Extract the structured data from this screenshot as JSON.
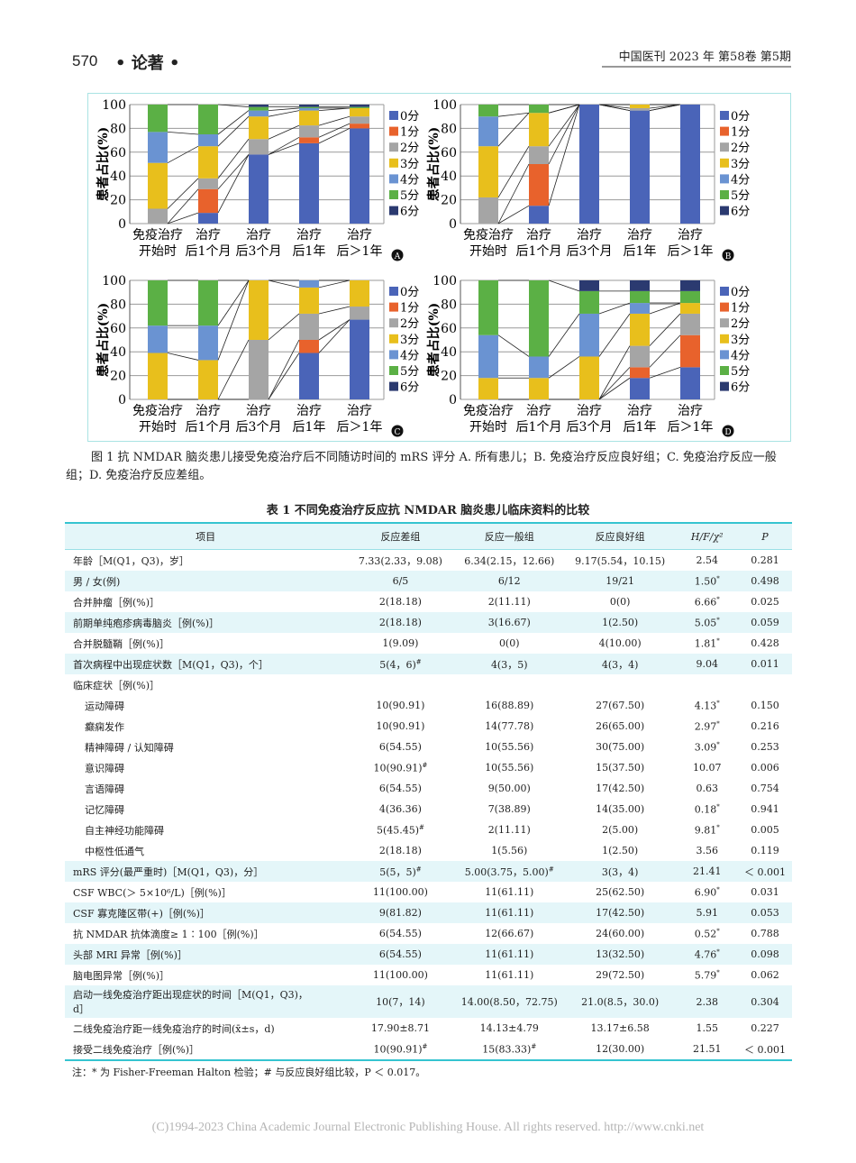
{
  "header": {
    "page_number": "570",
    "section": "• 论著 •",
    "journal": "中国医刊 2023 年  第58卷  第5期"
  },
  "figure": {
    "caption": "图 1   抗 NMDAR 脑炎患儿接受免疫治疗后不同随访时间的 mRS 评分   A. 所有患儿；B. 免疫治疗反应良好组；C. 免疫治疗反应一般组；D. 免疫治疗反应差组。"
  },
  "chart_data": [
    {
      "panel": "A",
      "type": "bar",
      "stacked": true,
      "ylabel": "患者占比(%)",
      "ylim": [
        0,
        100
      ],
      "yticks": [
        "0",
        "20",
        "40",
        "60",
        "80",
        "100"
      ],
      "grid": true,
      "legend": "right",
      "categories": [
        [
          "免疫治疗",
          "开始时"
        ],
        [
          "治疗",
          "后1个月"
        ],
        [
          "治疗",
          "后3个月"
        ],
        [
          "治疗",
          "后1年"
        ],
        [
          "治疗",
          "后＞1年"
        ]
      ],
      "series": [
        {
          "name": "0分",
          "values": [
            0,
            9,
            58,
            67.5,
            80
          ]
        },
        {
          "name": "1分",
          "values": [
            0,
            20,
            0,
            5,
            4
          ]
        },
        {
          "name": "2分",
          "values": [
            12.5,
            9,
            13,
            10,
            6
          ]
        },
        {
          "name": "3分",
          "values": [
            38.5,
            27,
            19,
            12.5,
            7
          ]
        },
        {
          "name": "4分",
          "values": [
            26,
            10,
            5,
            2,
            0
          ]
        },
        {
          "name": "5分",
          "values": [
            23,
            25,
            3,
            1,
            1
          ]
        },
        {
          "name": "6分",
          "values": [
            0,
            0,
            2,
            2,
            2
          ]
        }
      ]
    },
    {
      "panel": "B",
      "type": "bar",
      "stacked": true,
      "ylabel": "患者占比(%)",
      "ylim": [
        0,
        100
      ],
      "yticks": [
        "0",
        "20",
        "40",
        "60",
        "80",
        "100"
      ],
      "grid": true,
      "legend": "right",
      "categories": [
        [
          "免疫治疗",
          "开始时"
        ],
        [
          "治疗",
          "后1个月"
        ],
        [
          "治疗",
          "后3个月"
        ],
        [
          "治疗",
          "后1年"
        ],
        [
          "治疗",
          "后＞1年"
        ]
      ],
      "series": [
        {
          "name": "0分",
          "values": [
            0,
            15,
            100,
            95,
            100
          ]
        },
        {
          "name": "1分",
          "values": [
            0,
            35,
            0,
            0,
            0
          ]
        },
        {
          "name": "2分",
          "values": [
            22,
            15,
            0,
            2,
            0
          ]
        },
        {
          "name": "3分",
          "values": [
            43,
            28,
            0,
            3,
            0
          ]
        },
        {
          "name": "4分",
          "values": [
            25,
            0,
            0,
            0,
            0
          ]
        },
        {
          "name": "5分",
          "values": [
            10,
            7,
            0,
            0,
            0
          ]
        },
        {
          "name": "6分",
          "values": [
            0,
            0,
            0,
            0,
            0
          ]
        }
      ]
    },
    {
      "panel": "C",
      "type": "bar",
      "stacked": true,
      "ylabel": "患者占比(%)",
      "ylim": [
        0,
        100
      ],
      "yticks": [
        "0",
        "20",
        "40",
        "60",
        "80",
        "100"
      ],
      "grid": true,
      "legend": "right",
      "categories": [
        [
          "免疫治疗",
          "开始时"
        ],
        [
          "治疗",
          "后1个月"
        ],
        [
          "治疗",
          "后3个月"
        ],
        [
          "治疗",
          "后1年"
        ],
        [
          "治疗",
          "后＞1年"
        ]
      ],
      "series": [
        {
          "name": "0分",
          "values": [
            0,
            0,
            0,
            39,
            67
          ]
        },
        {
          "name": "1分",
          "values": [
            0,
            0,
            0,
            11,
            0
          ]
        },
        {
          "name": "2分",
          "values": [
            0,
            0,
            50,
            22,
            11
          ]
        },
        {
          "name": "3分",
          "values": [
            39,
            33,
            50,
            22,
            22
          ]
        },
        {
          "name": "4分",
          "values": [
            23,
            29,
            0,
            6,
            0
          ]
        },
        {
          "name": "5分",
          "values": [
            38,
            38,
            0,
            0,
            0
          ]
        },
        {
          "name": "6分",
          "values": [
            0,
            0,
            0,
            0,
            0
          ]
        }
      ]
    },
    {
      "panel": "D",
      "type": "bar",
      "stacked": true,
      "ylabel": "患者占比(%)",
      "ylim": [
        0,
        100
      ],
      "yticks": [
        "0",
        "20",
        "40",
        "60",
        "80",
        "100"
      ],
      "grid": true,
      "legend": "right",
      "categories": [
        [
          "免疫治疗",
          "开始时"
        ],
        [
          "治疗",
          "后1个月"
        ],
        [
          "治疗",
          "后3个月"
        ],
        [
          "治疗",
          "后1年"
        ],
        [
          "治疗",
          "后＞1年"
        ]
      ],
      "series": [
        {
          "name": "0分",
          "values": [
            0,
            0,
            0,
            18,
            27
          ]
        },
        {
          "name": "1分",
          "values": [
            0,
            0,
            0,
            9,
            27
          ]
        },
        {
          "name": "2分",
          "values": [
            0,
            0,
            0,
            18,
            18
          ]
        },
        {
          "name": "3分",
          "values": [
            18,
            18,
            36,
            27,
            9
          ]
        },
        {
          "name": "4分",
          "values": [
            36,
            18,
            36,
            9,
            0
          ]
        },
        {
          "name": "5分",
          "values": [
            46,
            64,
            19,
            10,
            10
          ]
        },
        {
          "name": "6分",
          "values": [
            0,
            0,
            9,
            9,
            9
          ]
        }
      ]
    }
  ],
  "colors": [
    "#4a64b8",
    "#e8622c",
    "#a5a5a5",
    "#e8bf1c",
    "#6a93d2",
    "#5bb045",
    "#2b3a70"
  ],
  "table": {
    "title": "表 1   不同免疫治疗反应抗 NMDAR 脑炎患儿临床资料的比较",
    "headers": [
      "项目",
      "反应差组",
      "反应一般组",
      "反应良好组",
      "H/F/χ²",
      "P"
    ],
    "rows": [
      {
        "item": "年龄［M(Q1，Q3)，岁］",
        "c": [
          "7.33(2.33，9.08)",
          "6.34(2.15，12.66)",
          "9.17(5.54，10.15)"
        ],
        "s": "2.54",
        "p": "0.281"
      },
      {
        "item": "男 / 女(例)",
        "c": [
          "6/5",
          "6/12",
          "19/21"
        ],
        "s": "1.50",
        "ss": "*",
        "p": "0.498",
        "shade": true
      },
      {
        "item": "合并肿瘤［例(%)］",
        "c": [
          "2(18.18)",
          "2(11.11)",
          "0(0)"
        ],
        "s": "6.66",
        "ss": "*",
        "p": "0.025"
      },
      {
        "item": "前期单纯疱疹病毒脑炎［例(%)］",
        "c": [
          "2(18.18)",
          "3(16.67)",
          "1(2.50)"
        ],
        "s": "5.05",
        "ss": "*",
        "p": "0.059",
        "shade": true
      },
      {
        "item": "合并脱髓鞘［例(%)］",
        "c": [
          "1(9.09)",
          "0(0)",
          "4(10.00)"
        ],
        "s": "1.81",
        "ss": "*",
        "p": "0.428"
      },
      {
        "item": "首次病程中出现症状数［M(Q1，Q3)，个］",
        "c": [
          "5(4，6)",
          "4(3，5)",
          "4(3，4)"
        ],
        "cs": [
          "#",
          "",
          ""
        ],
        "s": "9.04",
        "p": "0.011",
        "shade": true
      },
      {
        "item": "临床症状［例(%)］",
        "c": [
          "",
          "",
          ""
        ],
        "s": "",
        "p": ""
      },
      {
        "item": "运动障碍",
        "sub": true,
        "c": [
          "10(90.91)",
          "16(88.89)",
          "27(67.50)"
        ],
        "s": "4.13",
        "ss": "*",
        "p": "0.150"
      },
      {
        "item": "癫痫发作",
        "sub": true,
        "c": [
          "10(90.91)",
          "14(77.78)",
          "26(65.00)"
        ],
        "s": "2.97",
        "ss": "*",
        "p": "0.216"
      },
      {
        "item": "精神障碍 / 认知障碍",
        "sub": true,
        "c": [
          "6(54.55)",
          "10(55.56)",
          "30(75.00)"
        ],
        "s": "3.09",
        "ss": "*",
        "p": "0.253"
      },
      {
        "item": "意识障碍",
        "sub": true,
        "c": [
          "10(90.91)",
          "10(55.56)",
          "15(37.50)"
        ],
        "cs": [
          "#",
          "",
          ""
        ],
        "s": "10.07",
        "p": "0.006"
      },
      {
        "item": "言语障碍",
        "sub": true,
        "c": [
          "6(54.55)",
          "9(50.00)",
          "17(42.50)"
        ],
        "s": "0.63",
        "p": "0.754"
      },
      {
        "item": "记忆障碍",
        "sub": true,
        "c": [
          "4(36.36)",
          "7(38.89)",
          "14(35.00)"
        ],
        "s": "0.18",
        "ss": "*",
        "p": "0.941"
      },
      {
        "item": "自主神经功能障碍",
        "sub": true,
        "c": [
          "5(45.45)",
          "2(11.11)",
          "2(5.00)"
        ],
        "cs": [
          "#",
          "",
          ""
        ],
        "s": "9.81",
        "ss": "*",
        "p": "0.005"
      },
      {
        "item": "中枢性低通气",
        "sub": true,
        "c": [
          "2(18.18)",
          "1(5.56)",
          "1(2.50)"
        ],
        "s": "3.56",
        "p": "0.119"
      },
      {
        "item": "mRS 评分(最严重时)［M(Q1，Q3)，分］",
        "c": [
          "5(5，5)",
          "5.00(3.75，5.00)",
          "3(3，4)"
        ],
        "cs": [
          "#",
          "#",
          ""
        ],
        "s": "21.41",
        "p": "＜ 0.001",
        "shade": true
      },
      {
        "item": "CSF WBC(＞ 5×10⁶/L)［例(%)］",
        "c": [
          "11(100.00)",
          "11(61.11)",
          "25(62.50)"
        ],
        "s": "6.90",
        "ss": "*",
        "p": "0.031"
      },
      {
        "item": "CSF 寡克隆区带(+)［例(%)］",
        "c": [
          "9(81.82)",
          "11(61.11)",
          "17(42.50)"
        ],
        "s": "5.91",
        "p": "0.053",
        "shade": true
      },
      {
        "item": "抗 NMDAR 抗体滴度≥ 1∶100［例(%)］",
        "c": [
          "6(54.55)",
          "12(66.67)",
          "24(60.00)"
        ],
        "s": "0.52",
        "ss": "*",
        "p": "0.788"
      },
      {
        "item": "头部 MRI 异常［例(%)］",
        "c": [
          "6(54.55)",
          "11(61.11)",
          "13(32.50)"
        ],
        "s": "4.76",
        "ss": "*",
        "p": "0.098",
        "shade": true
      },
      {
        "item": "脑电图异常［例(%)］",
        "c": [
          "11(100.00)",
          "11(61.11)",
          "29(72.50)"
        ],
        "s": "5.79",
        "ss": "*",
        "p": "0.062"
      },
      {
        "item": "启动一线免疫治疗距出现症状的时间［M(Q1，Q3)，d］",
        "c": [
          "10(7，14)",
          "14.00(8.50，72.75)",
          "21.0(8.5，30.0)"
        ],
        "s": "2.38",
        "p": "0.304",
        "shade": true,
        "tall": true
      },
      {
        "item": "二线免疫治疗距一线免疫治疗的时间(x̄±s，d)",
        "c": [
          "17.90±8.71",
          "14.13±4.79",
          "13.17±6.58"
        ],
        "s": "1.55",
        "p": "0.227"
      },
      {
        "item": "接受二线免疫治疗［例(%)］",
        "c": [
          "10(90.91)",
          "15(83.33)",
          "12(30.00)"
        ],
        "cs": [
          "#",
          "#",
          ""
        ],
        "s": "21.51",
        "p": "＜ 0.001"
      }
    ],
    "note": "注：* 为 Fisher-Freeman Halton 检验；# 与反应良好组比较，P ＜ 0.017。"
  },
  "footer": {
    "watermark": "(C)1994-2023 China Academic Journal Electronic Publishing House. All rights reserved.    http://www.cnki.net"
  }
}
